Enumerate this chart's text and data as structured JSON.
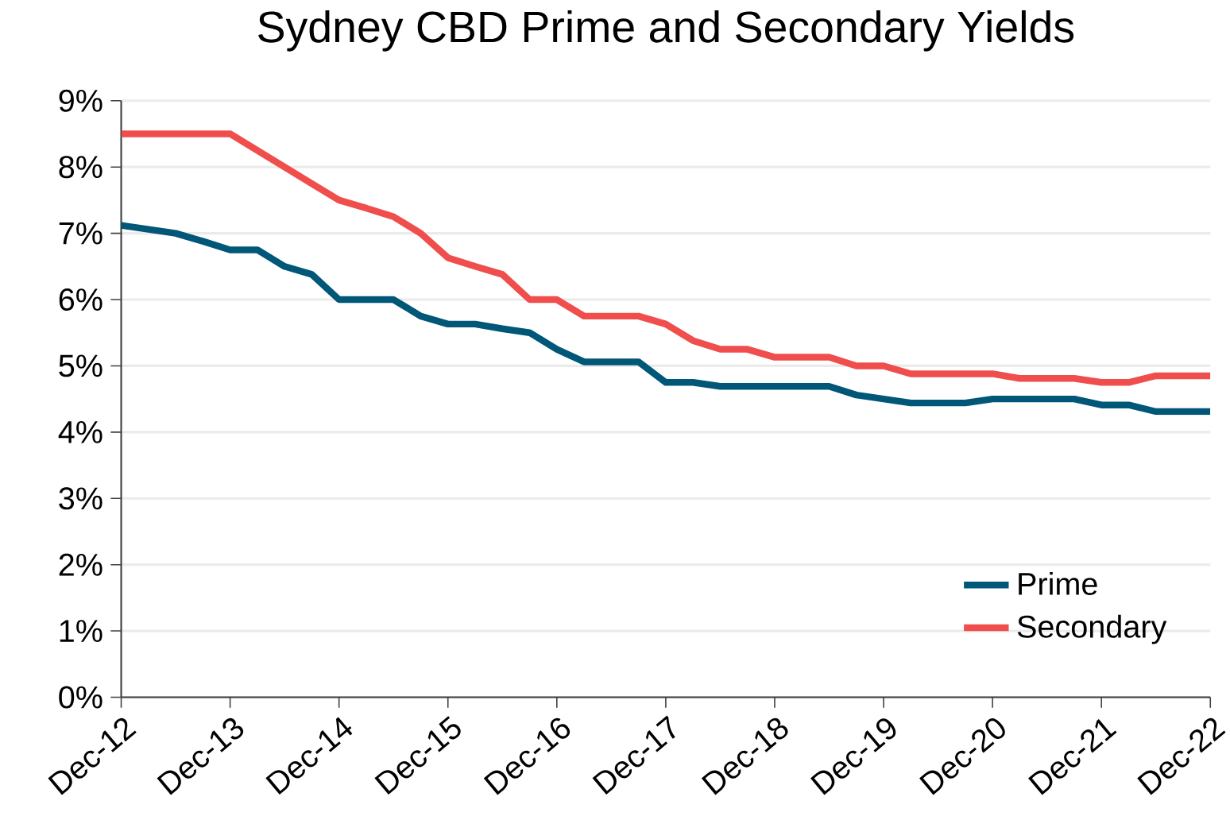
{
  "chart_data": {
    "type": "line",
    "title": "Sydney CBD Prime and Secondary Yields",
    "x": [
      "2012-12",
      "2013-03",
      "2013-06",
      "2013-09",
      "2013-12",
      "2014-03",
      "2014-06",
      "2014-09",
      "2014-12",
      "2015-03",
      "2015-06",
      "2015-09",
      "2015-12",
      "2016-03",
      "2016-06",
      "2016-09",
      "2016-12",
      "2017-03",
      "2017-06",
      "2017-09",
      "2017-12",
      "2018-03",
      "2018-06",
      "2018-09",
      "2018-12",
      "2019-03",
      "2019-06",
      "2019-09",
      "2019-12",
      "2020-03",
      "2020-06",
      "2020-09",
      "2020-12",
      "2021-03",
      "2021-06",
      "2021-09",
      "2021-12",
      "2022-03",
      "2022-06",
      "2022-09",
      "2022-12"
    ],
    "series": [
      {
        "name": "Prime",
        "color": "#005778",
        "values": [
          7.12,
          7.06,
          7.0,
          6.88,
          6.75,
          6.75,
          6.5,
          6.38,
          6.0,
          6.0,
          6.0,
          5.75,
          5.63,
          5.63,
          5.56,
          5.5,
          5.25,
          5.06,
          5.06,
          5.06,
          4.75,
          4.75,
          4.69,
          4.69,
          4.69,
          4.69,
          4.69,
          4.56,
          4.5,
          4.44,
          4.44,
          4.44,
          4.5,
          4.5,
          4.5,
          4.5,
          4.41,
          4.41,
          4.31,
          4.31,
          4.31
        ]
      },
      {
        "name": "Secondary",
        "color": "#f04d4d",
        "values": [
          8.5,
          8.5,
          8.5,
          8.5,
          8.5,
          8.25,
          8.0,
          7.75,
          7.5,
          7.38,
          7.25,
          7.0,
          6.63,
          6.5,
          6.38,
          6.0,
          6.0,
          5.75,
          5.75,
          5.75,
          5.63,
          5.38,
          5.25,
          5.25,
          5.13,
          5.13,
          5.13,
          5.0,
          5.0,
          4.88,
          4.88,
          4.88,
          4.88,
          4.81,
          4.81,
          4.81,
          4.75,
          4.75,
          4.85,
          4.85,
          4.85
        ]
      }
    ],
    "xlim": [
      "2012-12",
      "2022-12"
    ],
    "xticks": [
      {
        "value": "2012-12",
        "label": "Dec-12"
      },
      {
        "value": "2013-12",
        "label": "Dec-13"
      },
      {
        "value": "2014-12",
        "label": "Dec-14"
      },
      {
        "value": "2015-12",
        "label": "Dec-15"
      },
      {
        "value": "2016-12",
        "label": "Dec-16"
      },
      {
        "value": "2017-12",
        "label": "Dec-17"
      },
      {
        "value": "2018-12",
        "label": "Dec-18"
      },
      {
        "value": "2019-12",
        "label": "Dec-19"
      },
      {
        "value": "2020-12",
        "label": "Dec-20"
      },
      {
        "value": "2021-12",
        "label": "Dec-21"
      },
      {
        "value": "2022-12",
        "label": "Dec-22"
      }
    ],
    "ylim": [
      0,
      9
    ],
    "yticks": [
      {
        "value": 0,
        "label": "0%"
      },
      {
        "value": 1,
        "label": "1%"
      },
      {
        "value": 2,
        "label": "2%"
      },
      {
        "value": 3,
        "label": "3%"
      },
      {
        "value": 4,
        "label": "4%"
      },
      {
        "value": 5,
        "label": "5%"
      },
      {
        "value": 6,
        "label": "6%"
      },
      {
        "value": 7,
        "label": "7%"
      },
      {
        "value": 8,
        "label": "8%"
      },
      {
        "value": 9,
        "label": "9%"
      }
    ],
    "grid": "y",
    "legend": "bottom right",
    "marker": "none",
    "line_style": "solid"
  }
}
